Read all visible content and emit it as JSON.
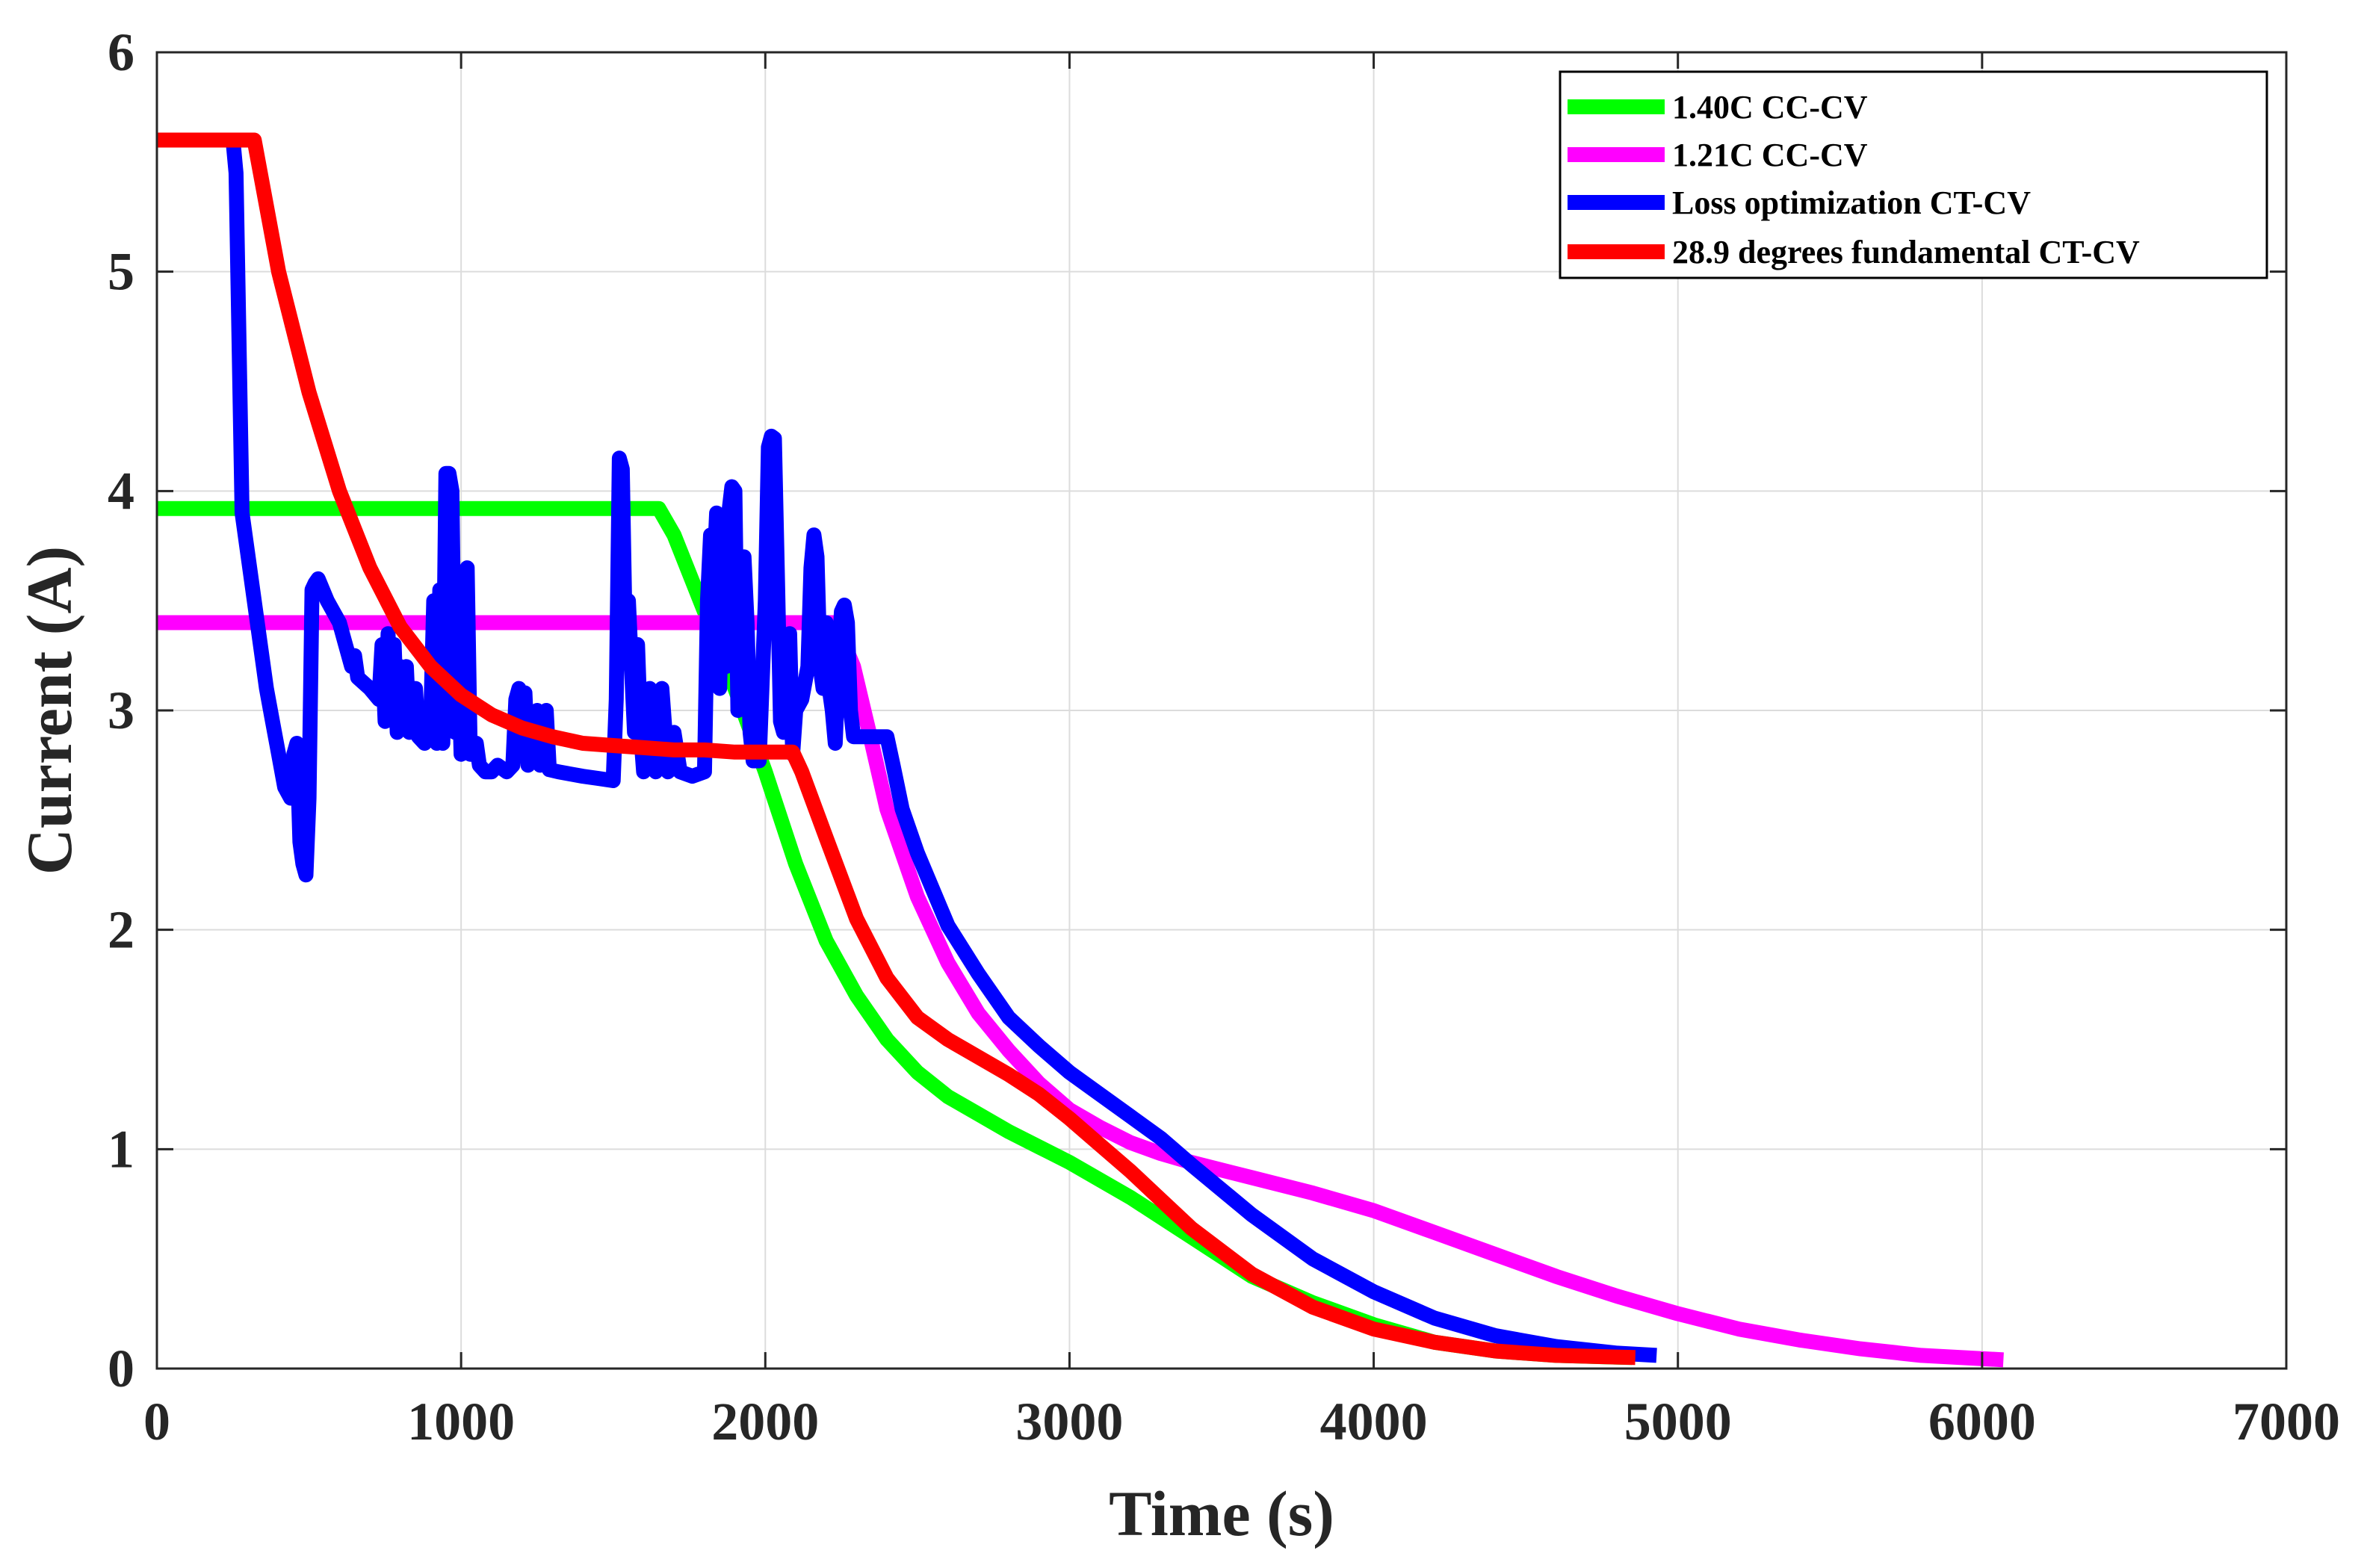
{
  "chart_data": {
    "type": "line",
    "title": "",
    "xlabel": "Time (s)",
    "ylabel": "Current (A)",
    "xlim": [
      0,
      7000
    ],
    "ylim": [
      0,
      6
    ],
    "xticks": [
      0,
      1000,
      2000,
      3000,
      4000,
      5000,
      6000,
      7000
    ],
    "yticks": [
      0,
      1,
      2,
      3,
      4,
      5,
      6
    ],
    "grid": true,
    "legend_position": "top-right",
    "series": [
      {
        "name": "1.40C CC-CV",
        "color": "#00ff00",
        "points": [
          [
            0,
            3.92
          ],
          [
            1650,
            3.92
          ],
          [
            1700,
            3.8
          ],
          [
            1800,
            3.45
          ],
          [
            1900,
            3.1
          ],
          [
            2000,
            2.72
          ],
          [
            2100,
            2.3
          ],
          [
            2200,
            1.95
          ],
          [
            2300,
            1.7
          ],
          [
            2400,
            1.5
          ],
          [
            2500,
            1.35
          ],
          [
            2600,
            1.24
          ],
          [
            2700,
            1.16
          ],
          [
            2800,
            1.08
          ],
          [
            2900,
            1.01
          ],
          [
            3000,
            0.94
          ],
          [
            3200,
            0.78
          ],
          [
            3400,
            0.6
          ],
          [
            3600,
            0.42
          ],
          [
            3800,
            0.3
          ],
          [
            4000,
            0.2
          ],
          [
            4200,
            0.12
          ],
          [
            4400,
            0.08
          ],
          [
            4600,
            0.06
          ],
          [
            4850,
            0.05
          ]
        ]
      },
      {
        "name": "1.21C CC-CV",
        "color": "#ff00ff",
        "points": [
          [
            0,
            3.4
          ],
          [
            2230,
            3.4
          ],
          [
            2290,
            3.2
          ],
          [
            2350,
            2.85
          ],
          [
            2400,
            2.55
          ],
          [
            2500,
            2.15
          ],
          [
            2600,
            1.85
          ],
          [
            2700,
            1.62
          ],
          [
            2800,
            1.45
          ],
          [
            2900,
            1.3
          ],
          [
            3000,
            1.18
          ],
          [
            3100,
            1.1
          ],
          [
            3200,
            1.03
          ],
          [
            3300,
            0.98
          ],
          [
            3400,
            0.94
          ],
          [
            3600,
            0.87
          ],
          [
            3800,
            0.8
          ],
          [
            4000,
            0.72
          ],
          [
            4200,
            0.62
          ],
          [
            4400,
            0.52
          ],
          [
            4600,
            0.42
          ],
          [
            4800,
            0.33
          ],
          [
            5000,
            0.25
          ],
          [
            5200,
            0.18
          ],
          [
            5400,
            0.13
          ],
          [
            5600,
            0.09
          ],
          [
            5800,
            0.06
          ],
          [
            6070,
            0.04
          ]
        ]
      },
      {
        "name": "Loss optimization CT-CV",
        "color": "#0000ff",
        "points": [
          [
            250,
            5.6
          ],
          [
            260,
            5.45
          ],
          [
            280,
            3.9
          ],
          [
            320,
            3.5
          ],
          [
            360,
            3.1
          ],
          [
            380,
            2.95
          ],
          [
            400,
            2.8
          ],
          [
            420,
            2.65
          ],
          [
            440,
            2.6
          ],
          [
            450,
            2.8
          ],
          [
            460,
            2.85
          ],
          [
            470,
            2.4
          ],
          [
            480,
            2.3
          ],
          [
            490,
            2.25
          ],
          [
            500,
            2.6
          ],
          [
            510,
            3.55
          ],
          [
            520,
            3.58
          ],
          [
            530,
            3.6
          ],
          [
            560,
            3.5
          ],
          [
            600,
            3.4
          ],
          [
            620,
            3.3
          ],
          [
            640,
            3.2
          ],
          [
            650,
            3.25
          ],
          [
            660,
            3.15
          ],
          [
            700,
            3.1
          ],
          [
            730,
            3.05
          ],
          [
            740,
            3.3
          ],
          [
            750,
            2.95
          ],
          [
            760,
            3.35
          ],
          [
            770,
            3.0
          ],
          [
            780,
            3.3
          ],
          [
            790,
            2.9
          ],
          [
            800,
            3.2
          ],
          [
            810,
            2.95
          ],
          [
            820,
            3.2
          ],
          [
            830,
            2.9
          ],
          [
            850,
            3.1
          ],
          [
            860,
            2.88
          ],
          [
            880,
            2.85
          ],
          [
            900,
            2.95
          ],
          [
            910,
            3.5
          ],
          [
            920,
            2.85
          ],
          [
            930,
            3.55
          ],
          [
            940,
            2.85
          ],
          [
            950,
            4.08
          ],
          [
            960,
            4.08
          ],
          [
            970,
            4.0
          ],
          [
            980,
            2.9
          ],
          [
            990,
            3.3
          ],
          [
            1000,
            2.8
          ],
          [
            1010,
            3.6
          ],
          [
            1020,
            3.65
          ],
          [
            1030,
            2.8
          ],
          [
            1050,
            2.85
          ],
          [
            1060,
            2.75
          ],
          [
            1080,
            2.72
          ],
          [
            1100,
            2.72
          ],
          [
            1120,
            2.75
          ],
          [
            1150,
            2.72
          ],
          [
            1170,
            2.75
          ],
          [
            1180,
            3.05
          ],
          [
            1190,
            3.1
          ],
          [
            1200,
            2.8
          ],
          [
            1210,
            3.08
          ],
          [
            1220,
            2.75
          ],
          [
            1240,
            2.85
          ],
          [
            1250,
            3.0
          ],
          [
            1260,
            2.75
          ],
          [
            1280,
            3.0
          ],
          [
            1290,
            2.73
          ],
          [
            1320,
            2.72
          ],
          [
            1360,
            2.71
          ],
          [
            1400,
            2.7
          ],
          [
            1450,
            2.69
          ],
          [
            1500,
            2.68
          ],
          [
            1510,
            3.05
          ],
          [
            1520,
            4.15
          ],
          [
            1530,
            4.1
          ],
          [
            1540,
            3.3
          ],
          [
            1550,
            3.5
          ],
          [
            1560,
            3.2
          ],
          [
            1570,
            2.9
          ],
          [
            1580,
            3.3
          ],
          [
            1590,
            2.9
          ],
          [
            1600,
            2.72
          ],
          [
            1620,
            3.1
          ],
          [
            1640,
            2.72
          ],
          [
            1660,
            3.1
          ],
          [
            1680,
            2.72
          ],
          [
            1700,
            2.9
          ],
          [
            1720,
            2.72
          ],
          [
            1760,
            2.7
          ],
          [
            1800,
            2.72
          ],
          [
            1810,
            3.5
          ],
          [
            1820,
            3.8
          ],
          [
            1830,
            3.6
          ],
          [
            1840,
            3.9
          ],
          [
            1850,
            3.1
          ],
          [
            1860,
            3.7
          ],
          [
            1870,
            3.2
          ],
          [
            1880,
            3.9
          ],
          [
            1890,
            4.02
          ],
          [
            1900,
            4.0
          ],
          [
            1910,
            3.0
          ],
          [
            1920,
            3.6
          ],
          [
            1930,
            3.7
          ],
          [
            1940,
            3.4
          ],
          [
            1950,
            2.9
          ],
          [
            1960,
            2.77
          ],
          [
            1980,
            2.77
          ],
          [
            2000,
            3.5
          ],
          [
            2010,
            4.2
          ],
          [
            2020,
            4.25
          ],
          [
            2030,
            4.24
          ],
          [
            2040,
            3.6
          ],
          [
            2050,
            2.95
          ],
          [
            2060,
            2.9
          ],
          [
            2070,
            3.2
          ],
          [
            2080,
            3.35
          ],
          [
            2090,
            2.8
          ],
          [
            2100,
            3.0
          ],
          [
            2120,
            3.05
          ],
          [
            2140,
            3.2
          ],
          [
            2150,
            3.65
          ],
          [
            2160,
            3.8
          ],
          [
            2170,
            3.7
          ],
          [
            2180,
            3.2
          ],
          [
            2190,
            3.1
          ],
          [
            2200,
            3.4
          ],
          [
            2210,
            3.1
          ],
          [
            2220,
            3.0
          ],
          [
            2230,
            2.85
          ],
          [
            2240,
            3.2
          ],
          [
            2250,
            3.45
          ],
          [
            2260,
            3.48
          ],
          [
            2270,
            3.4
          ],
          [
            2280,
            3.0
          ],
          [
            2290,
            2.88
          ],
          [
            2400,
            2.88
          ],
          [
            2420,
            2.75
          ],
          [
            2450,
            2.55
          ],
          [
            2500,
            2.35
          ],
          [
            2600,
            2.02
          ],
          [
            2700,
            1.8
          ],
          [
            2800,
            1.6
          ],
          [
            2900,
            1.47
          ],
          [
            3000,
            1.35
          ],
          [
            3100,
            1.25
          ],
          [
            3200,
            1.15
          ],
          [
            3300,
            1.05
          ],
          [
            3400,
            0.93
          ],
          [
            3600,
            0.7
          ],
          [
            3800,
            0.5
          ],
          [
            4000,
            0.35
          ],
          [
            4200,
            0.23
          ],
          [
            4400,
            0.15
          ],
          [
            4600,
            0.1
          ],
          [
            4800,
            0.07
          ],
          [
            4930,
            0.06
          ]
        ]
      },
      {
        "name": "28.9 degrees fundamental CT-CV",
        "color": "#ff0000",
        "points": [
          [
            0,
            5.6
          ],
          [
            320,
            5.6
          ],
          [
            400,
            5.0
          ],
          [
            500,
            4.45
          ],
          [
            600,
            4.0
          ],
          [
            700,
            3.65
          ],
          [
            800,
            3.38
          ],
          [
            900,
            3.2
          ],
          [
            1000,
            3.07
          ],
          [
            1100,
            2.98
          ],
          [
            1200,
            2.92
          ],
          [
            1300,
            2.88
          ],
          [
            1400,
            2.85
          ],
          [
            1500,
            2.84
          ],
          [
            1600,
            2.83
          ],
          [
            1700,
            2.82
          ],
          [
            1800,
            2.82
          ],
          [
            1900,
            2.81
          ],
          [
            2000,
            2.81
          ],
          [
            2090,
            2.81
          ],
          [
            2120,
            2.72
          ],
          [
            2200,
            2.42
          ],
          [
            2300,
            2.05
          ],
          [
            2400,
            1.78
          ],
          [
            2500,
            1.6
          ],
          [
            2600,
            1.5
          ],
          [
            2700,
            1.42
          ],
          [
            2800,
            1.34
          ],
          [
            2900,
            1.25
          ],
          [
            3000,
            1.14
          ],
          [
            3100,
            1.02
          ],
          [
            3200,
            0.9
          ],
          [
            3300,
            0.77
          ],
          [
            3400,
            0.64
          ],
          [
            3600,
            0.43
          ],
          [
            3800,
            0.28
          ],
          [
            4000,
            0.18
          ],
          [
            4200,
            0.12
          ],
          [
            4400,
            0.08
          ],
          [
            4600,
            0.06
          ],
          [
            4860,
            0.05
          ]
        ]
      }
    ]
  }
}
